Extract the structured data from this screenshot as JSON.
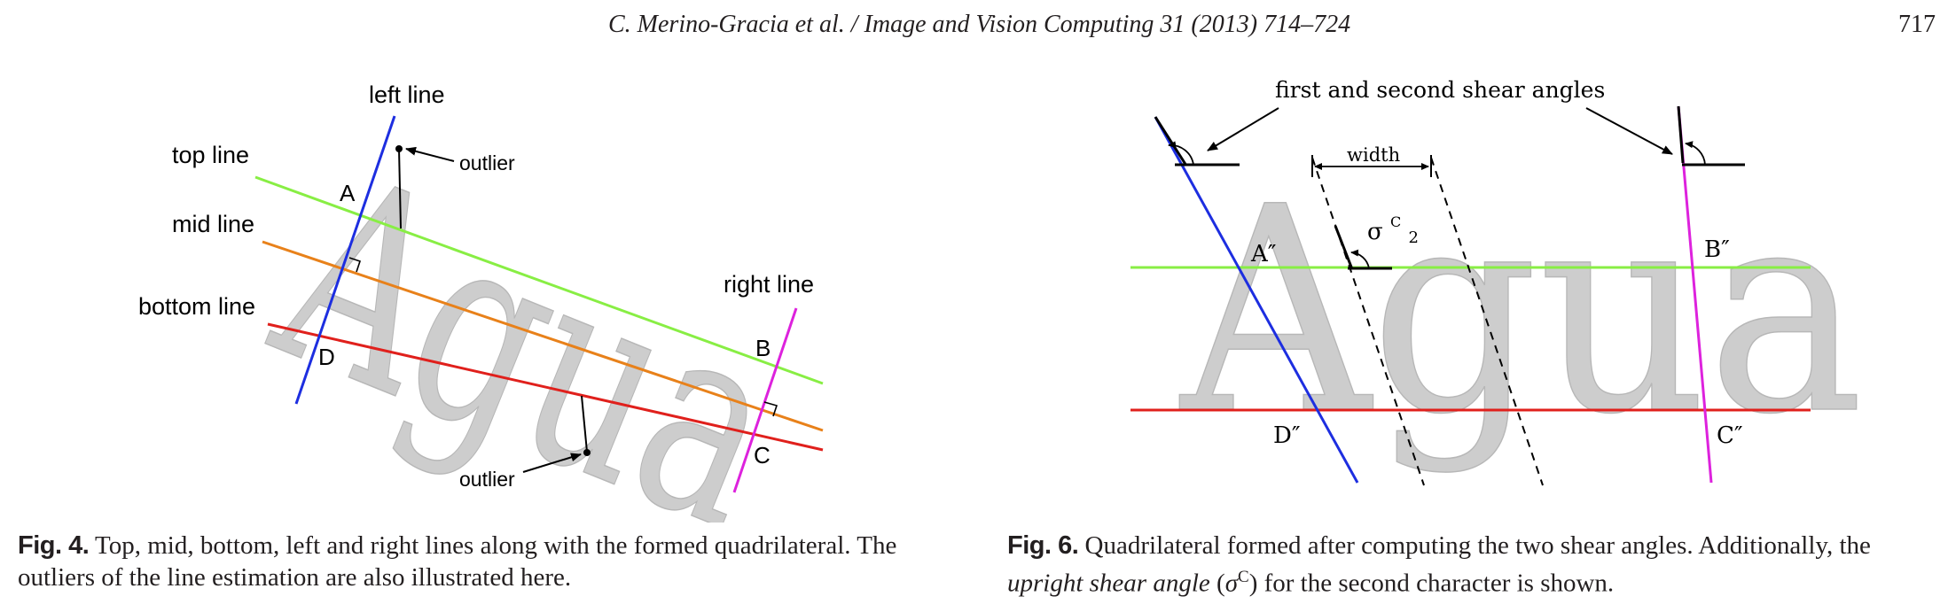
{
  "header": {
    "running_head": "C. Merino-Gracia et al. / Image and Vision Computing 31 (2013) 714–724",
    "page_number": "717"
  },
  "figure4": {
    "word": "Agua",
    "labels": {
      "left_line": "left line",
      "top_line": "top line",
      "mid_line": "mid line",
      "bottom_line": "bottom line",
      "right_line": "right line",
      "outlier_top": "outlier",
      "outlier_bottom": "outlier",
      "point_a": "A",
      "point_b": "B",
      "point_c": "C",
      "point_d": "D"
    },
    "colors": {
      "top_line": "#88ee44",
      "mid_line": "#e8811a",
      "bottom_line": "#e0201c",
      "left_line": "#1d2ee0",
      "right_line": "#dd22dd"
    },
    "caption": {
      "label": "Fig. 4.",
      "text": "Top, mid, bottom, left and right lines along with the formed quadrilateral. The outliers of the line estimation are also illustrated here."
    }
  },
  "figure6": {
    "word": "Agua",
    "labels": {
      "shear_angles": "first and second shear angles",
      "width": "width",
      "sigma": "σ",
      "sigma_sup": "C",
      "sigma_sub": "2",
      "a2": "A″",
      "b2": "B″",
      "c2": "C″",
      "d2": "D″"
    },
    "colors": {
      "top_line": "#88ee44",
      "bottom_line": "#e0201c",
      "left_line": "#1d2ee0",
      "right_line": "#dd22dd"
    },
    "caption": {
      "label": "Fig. 6.",
      "text_before": "Quadrilateral formed after computing the two shear angles. Additionally, the",
      "italic": "upright shear angle",
      "open_paren": "(",
      "symbol": "σ",
      "symbol_sup": "C",
      "text_after": ") for the second character is shown."
    }
  }
}
